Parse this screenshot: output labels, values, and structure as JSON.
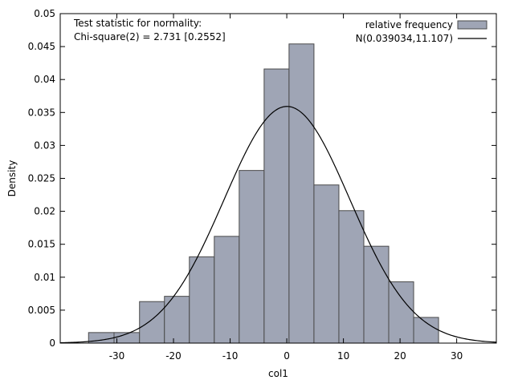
{
  "chart_data": {
    "type": "bar",
    "xlabel": "col1",
    "ylabel": "Density",
    "xlim": [
      -40,
      37
    ],
    "ylim": [
      0,
      0.05
    ],
    "grid": false,
    "xticks": [
      -30,
      -20,
      -10,
      0,
      10,
      20,
      30
    ],
    "yticks": [
      0,
      0.005,
      0.01,
      0.015,
      0.02,
      0.025,
      0.03,
      0.035,
      0.04,
      0.045,
      0.05
    ],
    "annotations": [
      "Test statistic for normality:",
      "Chi-square(2) = 2.731 [0.2552]"
    ],
    "legend_position": "top-right",
    "series": [
      {
        "name": "relative frequency",
        "kind": "histogram",
        "color": "#9fa5b5",
        "edge_color": "#4a4a4a",
        "bin_edges": [
          -35,
          -30.5,
          -26,
          -21.6,
          -17.2,
          -12.8,
          -8.4,
          -4,
          0.4,
          4.8,
          9.2,
          13.6,
          18,
          22.4,
          26.8
        ],
        "values": [
          0.0016,
          0.0016,
          0.0063,
          0.0071,
          0.0131,
          0.0162,
          0.0262,
          0.0416,
          0.0454,
          0.024,
          0.0201,
          0.0147,
          0.0093,
          0.0039
        ]
      },
      {
        "name": "N(0.039034,11.107)",
        "kind": "normal_curve",
        "color": "#000000",
        "mean": 0.039034,
        "sd": 11.107
      }
    ]
  }
}
